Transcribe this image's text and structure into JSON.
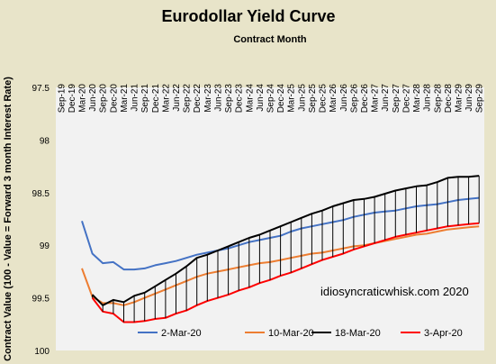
{
  "chart_data": {
    "type": "line",
    "title": "Eurodollar Yield Curve",
    "xlabel": "Contract Month",
    "ylabel": "Contract Value (100 - Value = Forward 3 month Interest Rate)",
    "y_reversed": true,
    "ylim": [
      97.5,
      100
    ],
    "yticks": [
      "97.5",
      "98",
      "98.5",
      "99",
      "99.5",
      "100"
    ],
    "x_axis_position": "top",
    "grid": "vertical",
    "legend_position": "bottom",
    "annotation": "idiosyncraticwhisk.com   2020",
    "categories": [
      "Sep-19",
      "Dec-19",
      "Mar-20",
      "Jun-20",
      "Sep-20",
      "Dec-20",
      "Mar-21",
      "Jun-21",
      "Sep-21",
      "Dec-21",
      "Mar-22",
      "Jun-22",
      "Sep-22",
      "Dec-22",
      "Mar-23",
      "Jun-23",
      "Sep-23",
      "Dec-23",
      "Mar-24",
      "Jun-24",
      "Sep-24",
      "Dec-24",
      "Mar-25",
      "Jun-25",
      "Sep-25",
      "Dec-25",
      "Mar-26",
      "Jun-26",
      "Sep-26",
      "Dec-26",
      "Mar-27",
      "Jun-27",
      "Sep-27",
      "Dec-27",
      "Mar-28",
      "Jun-28",
      "Sep-28",
      "Dec-28",
      "Mar-29",
      "Jun-29",
      "Sep-29"
    ],
    "series": [
      {
        "name": "2-Mar-20",
        "color": "#4472c4",
        "values": [
          null,
          null,
          98.77,
          99.08,
          99.17,
          99.16,
          99.23,
          99.23,
          99.22,
          99.19,
          99.17,
          99.15,
          99.12,
          99.09,
          99.07,
          99.05,
          99.03,
          99.0,
          98.97,
          98.95,
          98.93,
          98.91,
          98.87,
          98.84,
          98.82,
          98.8,
          98.78,
          98.76,
          98.73,
          98.71,
          98.69,
          98.68,
          98.67,
          98.65,
          98.63,
          98.62,
          98.61,
          98.59,
          98.57,
          98.56,
          98.55
        ]
      },
      {
        "name": "10-Mar-20",
        "color": "#ed7d31",
        "values": [
          null,
          null,
          99.22,
          99.49,
          99.55,
          99.55,
          99.57,
          99.54,
          99.5,
          99.46,
          99.42,
          99.38,
          99.34,
          99.3,
          99.27,
          99.25,
          99.23,
          99.21,
          99.19,
          99.17,
          99.16,
          99.14,
          99.12,
          99.1,
          99.08,
          99.07,
          99.05,
          99.03,
          99.01,
          99.0,
          98.98,
          98.96,
          98.94,
          98.92,
          98.9,
          98.89,
          98.87,
          98.85,
          98.84,
          98.83,
          98.82
        ]
      },
      {
        "name": "18-Mar-20",
        "color": "#000000",
        "values": [
          null,
          null,
          null,
          99.47,
          99.57,
          99.52,
          99.54,
          99.48,
          99.45,
          99.39,
          99.33,
          99.27,
          99.2,
          99.12,
          99.09,
          99.05,
          99.01,
          98.97,
          98.93,
          98.9,
          98.86,
          98.82,
          98.78,
          98.74,
          98.7,
          98.67,
          98.63,
          98.6,
          98.57,
          98.56,
          98.54,
          98.51,
          98.48,
          98.46,
          98.44,
          98.43,
          98.4,
          98.36,
          98.35,
          98.35,
          98.34
        ]
      },
      {
        "name": "3-Apr-20",
        "color": "#ff0000",
        "values": [
          null,
          null,
          null,
          99.5,
          99.63,
          99.65,
          99.73,
          99.73,
          99.72,
          99.7,
          99.69,
          99.65,
          99.62,
          99.57,
          99.53,
          99.5,
          99.47,
          99.43,
          99.4,
          99.36,
          99.33,
          99.29,
          99.26,
          99.22,
          99.18,
          99.14,
          99.11,
          99.08,
          99.04,
          99.01,
          98.98,
          98.95,
          98.92,
          98.9,
          98.88,
          98.86,
          98.84,
          98.82,
          98.81,
          98.8,
          98.79
        ]
      }
    ]
  }
}
